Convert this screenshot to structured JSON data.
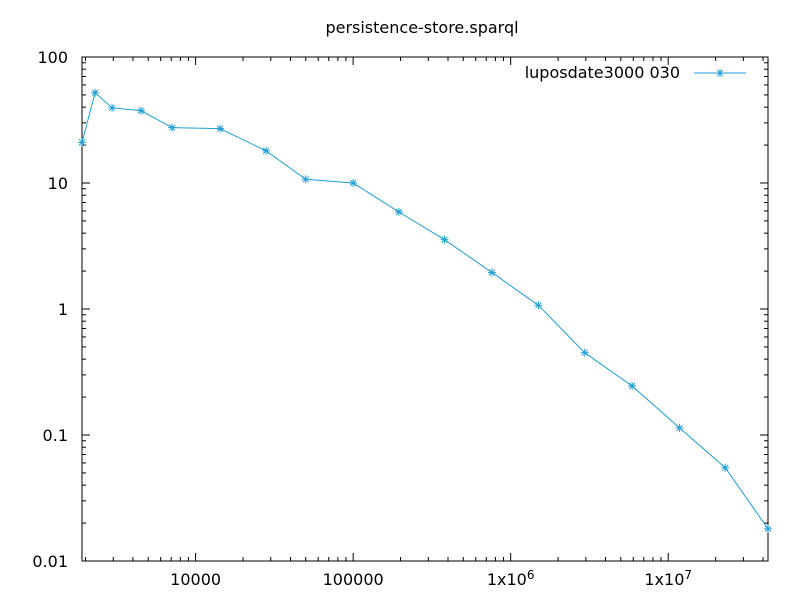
{
  "chart_data": {
    "type": "line",
    "title": "persistence-store.sparql",
    "xlabel": "",
    "ylabel": "",
    "xscale": "log",
    "yscale": "log",
    "xlim": [
      1900,
      43000000
    ],
    "ylim": [
      0.01,
      100
    ],
    "x_ticks": [
      {
        "value": 10000,
        "label": "10000"
      },
      {
        "value": 100000,
        "label": "100000"
      },
      {
        "value": 1000000,
        "label": "1x10",
        "sup": "6"
      },
      {
        "value": 10000000,
        "label": "1x10",
        "sup": "7"
      }
    ],
    "y_ticks": [
      {
        "value": 0.01,
        "label": "0.01"
      },
      {
        "value": 0.1,
        "label": "0.1"
      },
      {
        "value": 1,
        "label": "1"
      },
      {
        "value": 10,
        "label": "10"
      },
      {
        "value": 100,
        "label": "100"
      }
    ],
    "grid": false,
    "legend_position": "top-right",
    "series": [
      {
        "name": "luposdate3000 030",
        "color": "#1f9ed6",
        "marker": "asterisk",
        "points": [
          {
            "x": 1900,
            "y": 21
          },
          {
            "x": 2300,
            "y": 52
          },
          {
            "x": 2950,
            "y": 39.5
          },
          {
            "x": 4500,
            "y": 37.5
          },
          {
            "x": 7100,
            "y": 27.5
          },
          {
            "x": 14300,
            "y": 27
          },
          {
            "x": 28000,
            "y": 18
          },
          {
            "x": 50000,
            "y": 10.7
          },
          {
            "x": 100000,
            "y": 10
          },
          {
            "x": 195000,
            "y": 5.9
          },
          {
            "x": 380000,
            "y": 3.55
          },
          {
            "x": 760000,
            "y": 1.95
          },
          {
            "x": 1500000,
            "y": 1.07
          },
          {
            "x": 2950000,
            "y": 0.45
          },
          {
            "x": 5900000,
            "y": 0.245
          },
          {
            "x": 11800000,
            "y": 0.114
          },
          {
            "x": 23000000,
            "y": 0.055
          },
          {
            "x": 43000000,
            "y": 0.018
          }
        ]
      }
    ]
  }
}
